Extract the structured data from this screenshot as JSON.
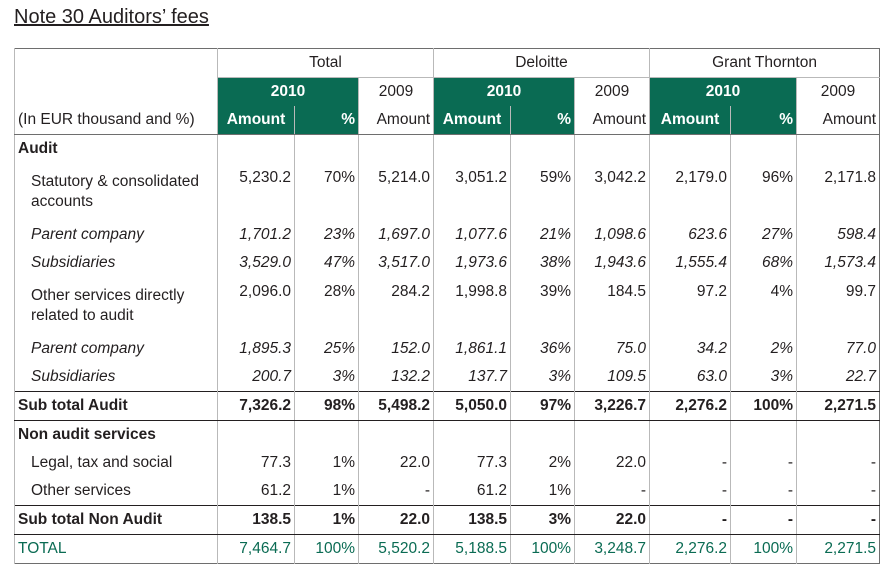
{
  "title": "Note 30 Auditors’ fees",
  "groups": [
    "Total",
    "Deloitte",
    "Grant Thornton"
  ],
  "years": {
    "current": "2010",
    "prior": "2009"
  },
  "unit_label": "(In EUR thousand and %)",
  "col_labels": {
    "amount": "Amount",
    "pct": "%"
  },
  "rows": [
    {
      "label": "Audit",
      "type": "section",
      "values": [
        "",
        "",
        "",
        "",
        "",
        "",
        "",
        "",
        ""
      ]
    },
    {
      "label": "Statutory & consolidated accounts",
      "type": "tall",
      "values": [
        "5,230.2",
        "70%",
        "5,214.0",
        "3,051.2",
        "59%",
        "3,042.2",
        "2,179.0",
        "96%",
        "2,171.8"
      ]
    },
    {
      "label": "Parent company",
      "type": "italic",
      "values": [
        "1,701.2",
        "23%",
        "1,697.0",
        "1,077.6",
        "21%",
        "1,098.6",
        "623.6",
        "27%",
        "598.4"
      ]
    },
    {
      "label": "Subsidiaries",
      "type": "italic",
      "values": [
        "3,529.0",
        "47%",
        "3,517.0",
        "1,973.6",
        "38%",
        "1,943.6",
        "1,555.4",
        "68%",
        "1,573.4"
      ]
    },
    {
      "label": "Other services directly related to audit",
      "type": "tall",
      "values": [
        "2,096.0",
        "28%",
        "284.2",
        "1,998.8",
        "39%",
        "184.5",
        "97.2",
        "4%",
        "99.7"
      ]
    },
    {
      "label": "Parent company",
      "type": "italic",
      "values": [
        "1,895.3",
        "25%",
        "152.0",
        "1,861.1",
        "36%",
        "75.0",
        "34.2",
        "2%",
        "77.0"
      ]
    },
    {
      "label": "Subsidiaries",
      "type": "italic",
      "values": [
        "200.7",
        "3%",
        "132.2",
        "137.7",
        "3%",
        "109.5",
        "63.0",
        "3%",
        "22.7"
      ]
    },
    {
      "label": "Sub total Audit",
      "type": "sub",
      "values": [
        "7,326.2",
        "98%",
        "5,498.2",
        "5,050.0",
        "97%",
        "3,226.7",
        "2,276.2",
        "100%",
        "2,271.5"
      ]
    },
    {
      "label": "Non audit services",
      "type": "section",
      "values": [
        "",
        "",
        "",
        "",
        "",
        "",
        "",
        "",
        ""
      ]
    },
    {
      "label": "Legal, tax and social",
      "type": "plain",
      "values": [
        "77.3",
        "1%",
        "22.0",
        "77.3",
        "2%",
        "22.0",
        "-",
        "-",
        "-"
      ]
    },
    {
      "label": "Other services",
      "type": "plain",
      "values": [
        "61.2",
        "1%",
        "-",
        "61.2",
        "1%",
        "-",
        "-",
        "-",
        "-"
      ]
    },
    {
      "label": "Sub total Non Audit",
      "type": "sub",
      "values": [
        "138.5",
        "1%",
        "22.0",
        "138.5",
        "3%",
        "22.0",
        "-",
        "-",
        "-"
      ]
    },
    {
      "label": "TOTAL",
      "type": "total",
      "values": [
        "7,464.7",
        "100%",
        "5,520.2",
        "5,188.5",
        "100%",
        "3,248.7",
        "2,276.2",
        "100%",
        "2,271.5"
      ]
    }
  ],
  "colors": {
    "accent": "#0a6b53",
    "text": "#231f20"
  }
}
